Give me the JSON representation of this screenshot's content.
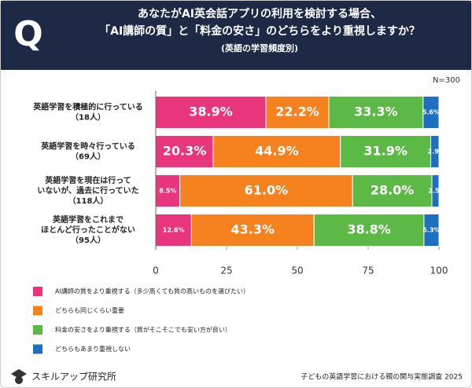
{
  "chart_data": {
    "type": "stacked_bar_horizontal",
    "title": [
      "あなたがAI英会話アプリの利用を検討する場合、",
      "「AI講師の質」と「料金の安さ」のどちらをより重視しますか？",
      "(英語の学習頻度別)"
    ],
    "note": "N=300",
    "categories": [
      [
        "英語学習を積極的に行っている",
        "（18人）"
      ],
      [
        "英語学習を時々行っている",
        "（69人）"
      ],
      [
        "英語学習を現在は行って",
        "いないが、過去に行っていた",
        "（118人）"
      ],
      [
        "英語学習をこれまで",
        "ほとんど行ったことがない",
        "（95人）"
      ]
    ],
    "series": [
      {
        "name": "AI講師の質をより重視する（多少高くても質の高いものを選びたい）",
        "color": "#e8357b",
        "values": [
          38.9,
          20.3,
          8.5,
          12.6
        ],
        "value_labels": [
          "38.9%",
          "20.3%",
          "8.5%",
          "12.6%"
        ]
      },
      {
        "name": "どちらも同じくらい重要",
        "color": "#f5821f",
        "values": [
          22.2,
          44.9,
          61.0,
          43.3
        ],
        "value_labels": [
          "22.2%",
          "44.9%",
          "61.0%",
          "43.3%"
        ]
      },
      {
        "name": "料金の安さをより重視する（質がそこそこでも安い方が良い）",
        "color": "#5cb946",
        "values": [
          33.3,
          31.9,
          28.0,
          38.8
        ],
        "value_labels": [
          "33.3%",
          "31.9%",
          "28.0%",
          "38.8%"
        ]
      },
      {
        "name": "どちらもあまり重視しない",
        "color": "#1f6fc1",
        "values": [
          5.6,
          2.9,
          2.5,
          5.3
        ],
        "value_labels": [
          "5.6%",
          "2.9%",
          "2.5%",
          "5.3%"
        ]
      }
    ],
    "xlim": [
      0,
      100
    ],
    "xticks": [
      0,
      25,
      50,
      75,
      100
    ],
    "brand": "スキルアップ研究所",
    "source": "子どもの英語学習における親の関与実態調査 2025"
  }
}
